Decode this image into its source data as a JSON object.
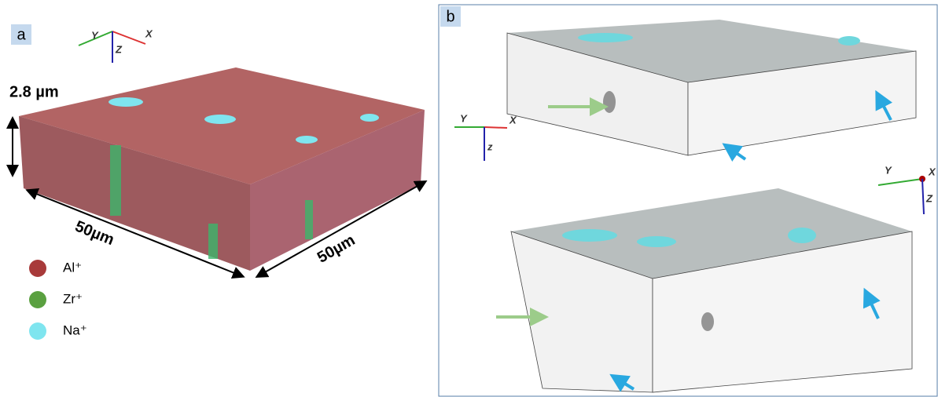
{
  "panel_a": {
    "label": "a",
    "axes": {
      "y": "Y",
      "x": "X",
      "z": "Z"
    },
    "thickness": "2.8 µm",
    "width": "50µm",
    "depth": "50µm",
    "legend": [
      "Al⁺",
      "Zr⁺",
      "Na⁺"
    ]
  },
  "panel_b": {
    "label": "b",
    "axes_top": {
      "y": "Y",
      "x": "X",
      "z": "z"
    },
    "axes_bottom": {
      "y": "Y",
      "x": "X",
      "z": "Z"
    }
  }
}
